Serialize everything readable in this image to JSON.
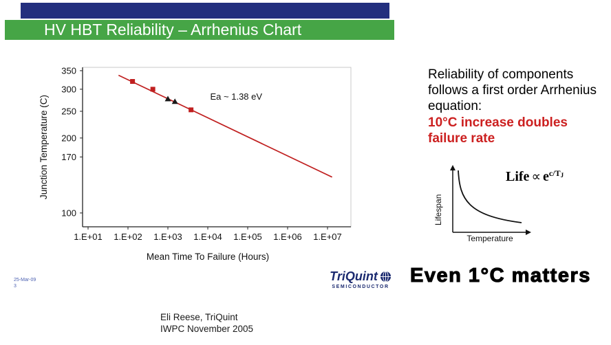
{
  "slide": {
    "title": "HV HBT Reliability – Arrhenius Chart",
    "date_stamp_line1": "25-Mar-09",
    "date_stamp_line2": "3",
    "credit_line1": "Eli Reese, TriQuint",
    "credit_line2": "IWPC November 2005",
    "logo": {
      "name": "TriQuint",
      "subtitle": "SEMICONDUCTOR"
    }
  },
  "right_panel": {
    "paragraph": "Reliability of components follows a first order Arrhenius equation:",
    "highlight": "10°C increase doubles failure rate",
    "formula": {
      "life": "Life",
      "propto": "∝",
      "base": "e",
      "exponent": "c/T",
      "exponent_sub": "J"
    },
    "mini_chart": {
      "type": "line",
      "ylabel": "Lifespan",
      "xlabel": "Temperature",
      "shape": "steeply decaying convex curve, lifespan drops as temperature rises"
    },
    "tagline": "Even 1°C matters"
  },
  "colors": {
    "navy_bar": "#232f7e",
    "green_bar": "#46a546",
    "accent_red": "#cc2020",
    "logo_navy": "#1b2a70"
  },
  "chart_data": {
    "type": "scatter",
    "title": "",
    "xlabel": "Mean Time To Failure (Hours)",
    "ylabel": "Junction Temperature (C)",
    "x_scale": "log10",
    "y_scale": "arrhenius (linear in 1/T Kelvin)",
    "x_tick_range": [
      10,
      10000000
    ],
    "grid": false,
    "legend": false,
    "x_ticks": [
      {
        "value": 10,
        "label": "1.E+01"
      },
      {
        "value": 100,
        "label": "1.E+02"
      },
      {
        "value": 1000,
        "label": "1.E+03"
      },
      {
        "value": 10000,
        "label": "1.E+04"
      },
      {
        "value": 100000,
        "label": "1.E+05"
      },
      {
        "value": 1000000,
        "label": "1.E+06"
      },
      {
        "value": 10000000,
        "label": "1.E+07"
      }
    ],
    "y_ticks": [
      {
        "value": 350,
        "label": "350"
      },
      {
        "value": 300,
        "label": "300"
      },
      {
        "value": 250,
        "label": "250"
      },
      {
        "value": 200,
        "label": "200"
      },
      {
        "value": 170,
        "label": "170"
      },
      {
        "value": 100,
        "label": "100"
      }
    ],
    "annotation": {
      "text": "Ea ~ 1.38 eV",
      "x": 11500,
      "temp_c": 275,
      "color": "#cc2020"
    },
    "fit_line": {
      "color": "#c02020",
      "points": [
        [
          58,
          337
        ],
        [
          13000000,
          142
        ]
      ]
    },
    "series": [
      {
        "name": "life-test-points-squares",
        "marker": "square",
        "color": "#c02020",
        "points": [
          [
            130,
            320
          ],
          [
            420,
            300
          ],
          [
            3800,
            253
          ]
        ]
      },
      {
        "name": "life-test-points-triangles",
        "marker": "triangle",
        "color": "#1a1a1a",
        "points": [
          [
            1000,
            277
          ],
          [
            1500,
            271
          ]
        ]
      }
    ]
  }
}
